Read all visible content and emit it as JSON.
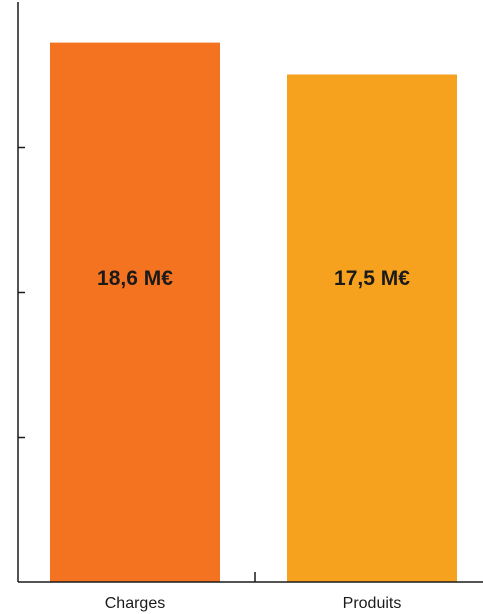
{
  "chart_data": {
    "type": "bar",
    "title": "",
    "xlabel": "",
    "ylabel": "",
    "categories": [
      "Charges",
      "Produits"
    ],
    "values": [
      18.6,
      17.5
    ],
    "data_labels": [
      "18,6 M€",
      "17,5 M€"
    ],
    "colors": [
      "#f37321",
      "#f7a21e"
    ],
    "ylim": [
      0,
      20
    ],
    "y_ticks": [
      5,
      10,
      15
    ],
    "y_tick_labels_shown": false,
    "grid": false,
    "legend": "none"
  }
}
